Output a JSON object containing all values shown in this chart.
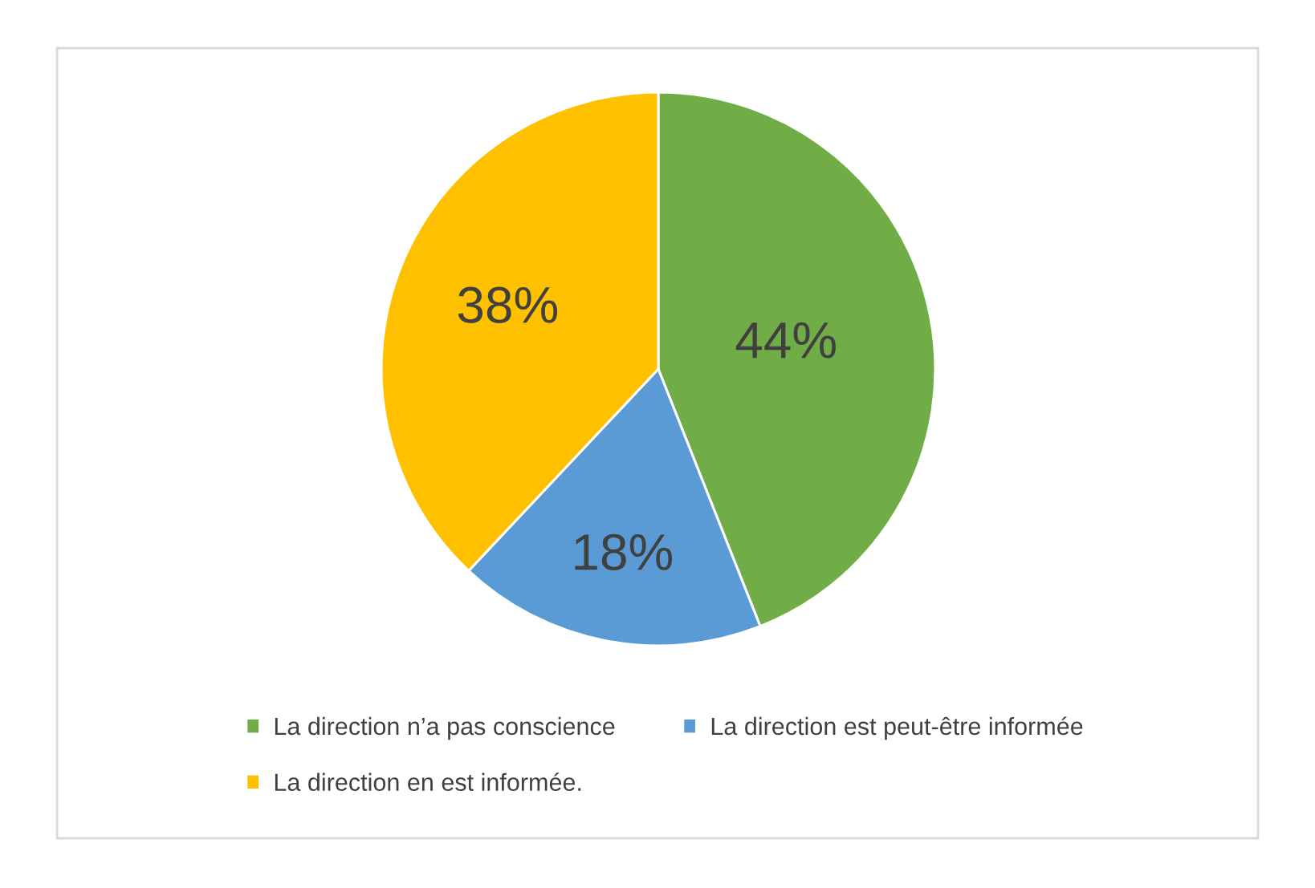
{
  "chart_data": {
    "type": "pie",
    "categories": [
      "La direction n’a pas conscience",
      "La direction est peut-être informée",
      "La direction en est informée."
    ],
    "values": [
      44,
      18,
      38
    ],
    "colors": [
      "#70ad47",
      "#5b9bd5",
      "#ffc000"
    ],
    "value_labels": [
      "44%",
      "18%",
      "38%"
    ],
    "legend": "bottom"
  }
}
